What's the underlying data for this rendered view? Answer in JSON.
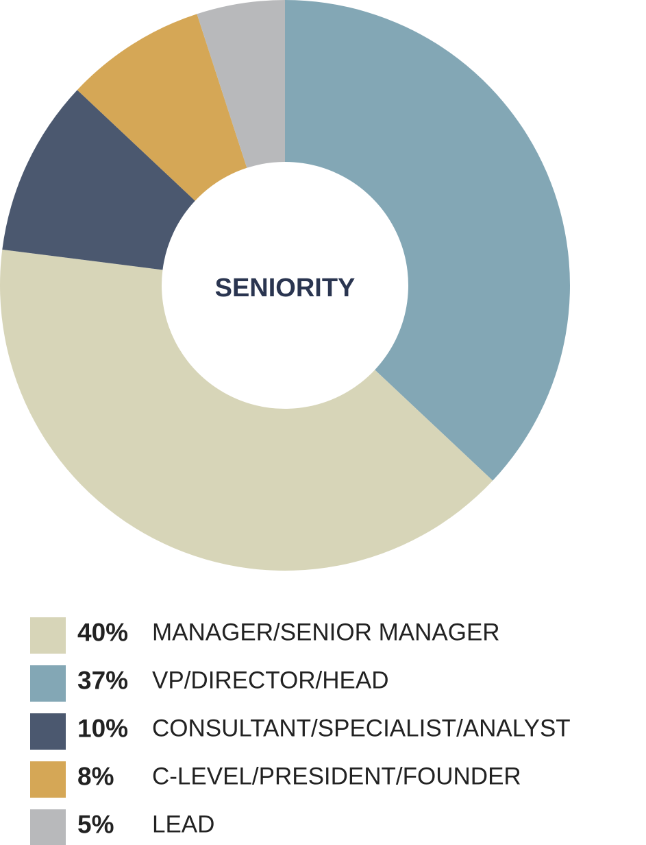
{
  "chart_data": {
    "type": "pie",
    "title": "SENIORITY",
    "categories": [
      "MANAGER/SENIOR MANAGER",
      "VP/DIRECTOR/HEAD",
      "CONSULTANT/SPECIALIST/ANALYST",
      "C-LEVEL/PRESIDENT/FOUNDER",
      "LEAD"
    ],
    "values": [
      40,
      37,
      10,
      8,
      5
    ],
    "value_labels": [
      "40%",
      "37%",
      "10%",
      "8%",
      "5%"
    ],
    "colors": [
      "#d7d5b8",
      "#83a7b5",
      "#4b586f",
      "#d5a756",
      "#b8b9bb"
    ]
  }
}
